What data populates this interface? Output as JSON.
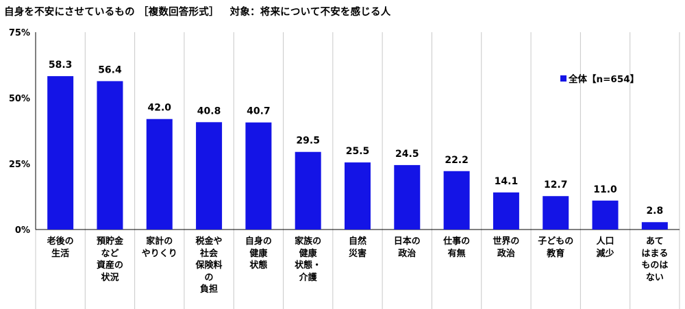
{
  "title": {
    "main": "自身を不安にさせているもの ［複数回答形式］",
    "target": "対象：将来について不安を感じる人"
  },
  "chart_data": {
    "type": "bar",
    "categories": [
      [
        "老後の",
        "生活"
      ],
      [
        "預貯金",
        "など",
        "資産の",
        "状況"
      ],
      [
        "家計の",
        "やりくり"
      ],
      [
        "税金や",
        "社会",
        "保険料",
        "の",
        "負担"
      ],
      [
        "自身の",
        "健康",
        "状態"
      ],
      [
        "家族の",
        "健康",
        "状態・",
        "介護"
      ],
      [
        "自然",
        "災害"
      ],
      [
        "日本の",
        "政治"
      ],
      [
        "仕事の",
        "有無"
      ],
      [
        "世界の",
        "政治"
      ],
      [
        "子どもの",
        "教育"
      ],
      [
        "人口",
        "減少"
      ],
      [
        "あて",
        "はまる",
        "ものは",
        "ない"
      ]
    ],
    "series": [
      {
        "name": "全体【n=654】",
        "color": "#1414e6",
        "values": [
          58.3,
          56.4,
          42.0,
          40.8,
          40.7,
          29.5,
          25.5,
          24.5,
          22.2,
          14.1,
          12.7,
          11.0,
          2.8
        ]
      }
    ],
    "yticks": [
      "0%",
      "25%",
      "50%",
      "75%"
    ],
    "ylim": [
      0,
      75
    ],
    "grid": false,
    "legend_position": "top-right"
  }
}
